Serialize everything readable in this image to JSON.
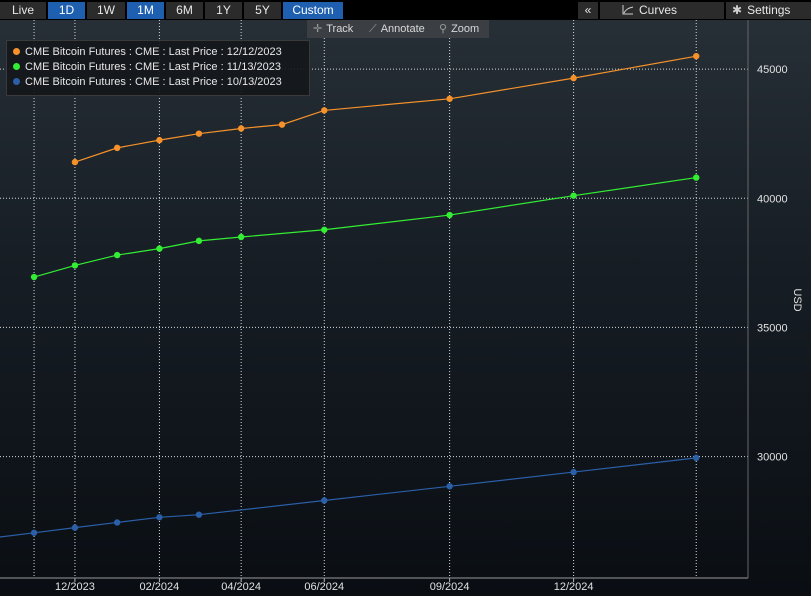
{
  "toolbar": {
    "ranges": [
      "Live",
      "1D",
      "1W",
      "1M",
      "6M",
      "1Y",
      "5Y",
      "Custom"
    ],
    "active_ranges": [
      "1D",
      "1M",
      "Custom"
    ],
    "collapse_glyph": "«",
    "curves_label": "Curves",
    "settings_label": "Settings"
  },
  "tools": {
    "track_label": "Track",
    "annotate_label": "Annotate",
    "zoom_label": "Zoom"
  },
  "colors": {
    "series_1": "#f7922a",
    "series_2": "#33ee33",
    "series_3": "#2b5fa8",
    "grid": "#d8d8d8"
  },
  "chart_data": {
    "type": "line",
    "ylabel": "USD",
    "ylim": [
      25300,
      46900
    ],
    "yticks": [
      30000,
      35000,
      40000,
      45000
    ],
    "x_tick_labels": [
      "12/2023",
      "02/2024",
      "04/2024",
      "06/2024",
      "09/2024",
      "12/2024"
    ],
    "x_tick_dates": [
      "2023-12-01",
      "2024-02-01",
      "2024-04-01",
      "2024-06-01",
      "2024-09-01",
      "2024-12-01"
    ],
    "x_extra_grid_dates": [
      "2023-11-01",
      "2025-03-01"
    ],
    "xlim": [
      "2023-10-07",
      "2025-04-08"
    ],
    "grid": true,
    "legend_position": "top-left",
    "series": [
      {
        "name": "CME Bitcoin Futures : CME : Last Price : 12/12/2023",
        "color": "#f7922a",
        "x": [
          "2023-12-01",
          "2024-01-01",
          "2024-02-01",
          "2024-03-01",
          "2024-04-01",
          "2024-05-01",
          "2024-06-01",
          "2024-09-01",
          "2024-12-01",
          "2025-03-01"
        ],
        "y": [
          41400,
          41950,
          42250,
          42500,
          42700,
          42850,
          43400,
          43850,
          44650,
          45500
        ]
      },
      {
        "name": "CME Bitcoin Futures : CME : Last Price : 11/13/2023",
        "color": "#33ee33",
        "x": [
          "2023-11-01",
          "2023-12-01",
          "2024-01-01",
          "2024-02-01",
          "2024-03-01",
          "2024-04-01",
          "2024-06-01",
          "2024-09-01",
          "2024-12-01",
          "2025-03-01"
        ],
        "y": [
          36950,
          37400,
          37800,
          38050,
          38350,
          38500,
          38780,
          39350,
          40100,
          40800
        ]
      },
      {
        "name": "CME Bitcoin Futures : CME : Last Price : 10/13/2023",
        "color": "#2b5fa8",
        "x": [
          "2023-10-01",
          "2023-11-01",
          "2023-12-01",
          "2024-01-01",
          "2024-02-01",
          "2024-03-01",
          "2024-06-01",
          "2024-09-01",
          "2024-12-01",
          "2025-03-01"
        ],
        "y": [
          26850,
          27050,
          27250,
          27450,
          27650,
          27750,
          28300,
          28850,
          29400,
          29950
        ]
      }
    ]
  }
}
